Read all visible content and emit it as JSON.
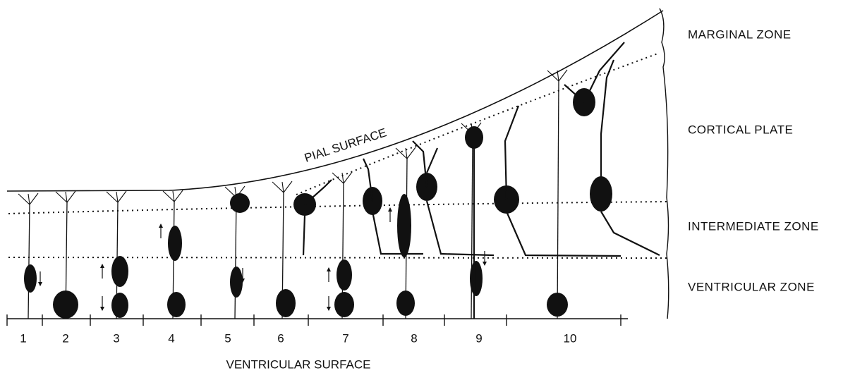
{
  "figure": {
    "pial_label": "PIAL SURFACE",
    "zones": [
      "MARGINAL ZONE",
      "CORTICAL PLATE",
      "INTERMEDIATE ZONE",
      "VENTRICULAR ZONE"
    ],
    "stage_labels": [
      "1",
      "2",
      "3",
      "4",
      "5",
      "6",
      "7",
      "8",
      "9",
      "10"
    ],
    "bottom_label": "VENTRICULAR SURFACE"
  }
}
